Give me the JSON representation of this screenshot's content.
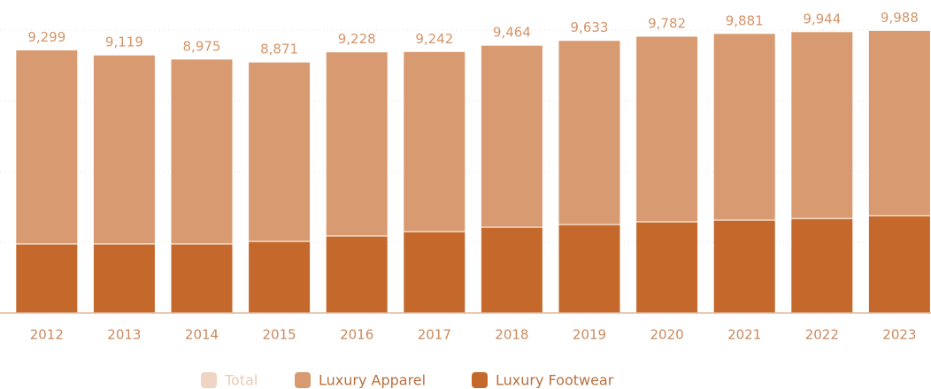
{
  "chart_data": {
    "type": "stacked_bar",
    "categories": [
      "2012",
      "2013",
      "2014",
      "2015",
      "2016",
      "2017",
      "2018",
      "2019",
      "2020",
      "2021",
      "2022",
      "2023"
    ],
    "series": [
      {
        "name": "Total",
        "color": "#f1d5c4",
        "values": [
          9299,
          9119,
          8975,
          8871,
          9228,
          9242,
          9464,
          9633,
          9782,
          9881,
          9944,
          9988
        ],
        "value_labels": [
          "9,299",
          "9,119",
          "8,975",
          "8,871",
          "9,228",
          "9,242",
          "9,464",
          "9,633",
          "9,782",
          "9,881",
          "9,944",
          "9,988"
        ]
      },
      {
        "name": "Luxury Apparel",
        "color": "#d89a70",
        "values": [
          6859,
          6679,
          6535,
          6341,
          6508,
          6367,
          6434,
          6508,
          6562,
          6601,
          6604,
          6548
        ]
      },
      {
        "name": "Luxury Footwear",
        "color": "#c4692b",
        "values": [
          2440,
          2440,
          2440,
          2530,
          2720,
          2875,
          3030,
          3125,
          3220,
          3280,
          3340,
          3440
        ]
      }
    ],
    "ylim": [
      0,
      10000
    ],
    "yticks": [
      0,
      2500,
      5000,
      7500,
      10000
    ],
    "grid": true,
    "legend": "bottom"
  }
}
